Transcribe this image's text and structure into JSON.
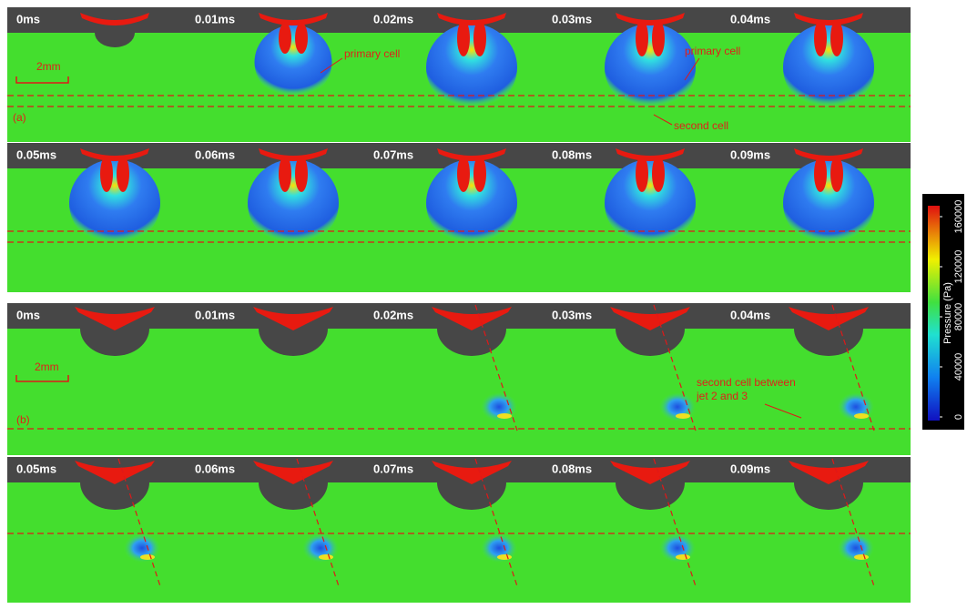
{
  "panels": [
    {
      "label": "(a)",
      "scale_bar": "2mm",
      "rows": [
        [
          "0ms",
          "0.01ms",
          "0.02ms",
          "0.03ms",
          "0.04ms"
        ],
        [
          "0.05ms",
          "0.06ms",
          "0.07ms",
          "0.08ms",
          "0.09ms"
        ]
      ],
      "annotations": [
        "primary cell",
        "primary cell",
        "second cell"
      ]
    },
    {
      "label": "(b)",
      "scale_bar": "2mm",
      "rows": [
        [
          "0ms",
          "0.01ms",
          "0.02ms",
          "0.03ms",
          "0.04ms"
        ],
        [
          "0.05ms",
          "0.06ms",
          "0.07ms",
          "0.08ms",
          "0.09ms"
        ]
      ],
      "annotations": [
        "second cell between",
        "jet 2 and 3"
      ]
    }
  ],
  "colorbar": {
    "title": "Pressure (Pa)",
    "ticks": [
      0,
      40000,
      80000,
      120000,
      160000
    ]
  }
}
